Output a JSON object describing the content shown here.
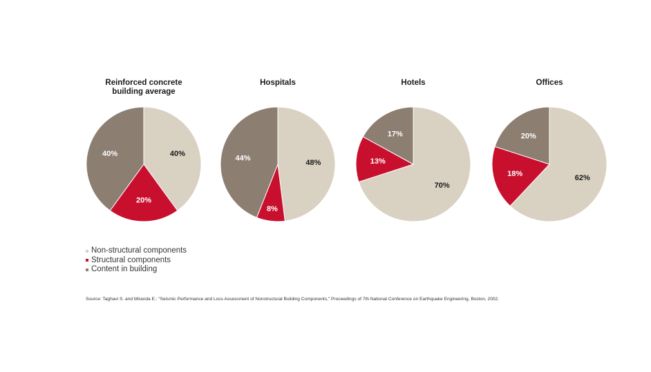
{
  "chart_data": [
    {
      "type": "pie",
      "title_lines": [
        "Reinforced concrete",
        "building average"
      ],
      "slices": [
        {
          "label": "Non-structural components",
          "value": 40,
          "value_label": "40%"
        },
        {
          "label": "Structural components",
          "value": 20,
          "value_label": "20%"
        },
        {
          "label": "Content in building",
          "value": 40,
          "value_label": "40%"
        }
      ]
    },
    {
      "type": "pie",
      "title_lines": [
        "Hospitals"
      ],
      "slices": [
        {
          "label": "Non-structural components",
          "value": 48,
          "value_label": "48%"
        },
        {
          "label": "Structural components",
          "value": 8,
          "value_label": "8%"
        },
        {
          "label": "Content in building",
          "value": 44,
          "value_label": "44%"
        }
      ]
    },
    {
      "type": "pie",
      "title_lines": [
        "Hotels"
      ],
      "slices": [
        {
          "label": "Non-structural components",
          "value": 70,
          "value_label": "70%"
        },
        {
          "label": "Structural components",
          "value": 13,
          "value_label": "13%"
        },
        {
          "label": "Content in building",
          "value": 17,
          "value_label": "17%"
        }
      ]
    },
    {
      "type": "pie",
      "title_lines": [
        "Offices"
      ],
      "slices": [
        {
          "label": "Non-structural components",
          "value": 62,
          "value_label": "62%"
        },
        {
          "label": "Structural components",
          "value": 18,
          "value_label": "18%"
        },
        {
          "label": "Content in building",
          "value": 20,
          "value_label": "20%"
        }
      ]
    }
  ],
  "legend": {
    "placement": "bottom-left",
    "items": [
      {
        "label": "Non-structural components",
        "color": "#d9d1c2"
      },
      {
        "label": "Structural components",
        "color": "#c8102e"
      },
      {
        "label": "Content in building",
        "color": "#8c7e70"
      }
    ]
  },
  "colors": {
    "non_structural": "#d9d1c2",
    "structural": "#c8102e",
    "content": "#8c7e70",
    "label_dark": "#1a1a1a",
    "label_light": "#ffffff"
  },
  "source": "Source: Taghavi S. and Miranda E.: “Seismic Performance and Loss Assessment of Nonstructural Building Components,” Proceedings of 7th National Conference on Earthquake Engineering, Boston, 2002."
}
